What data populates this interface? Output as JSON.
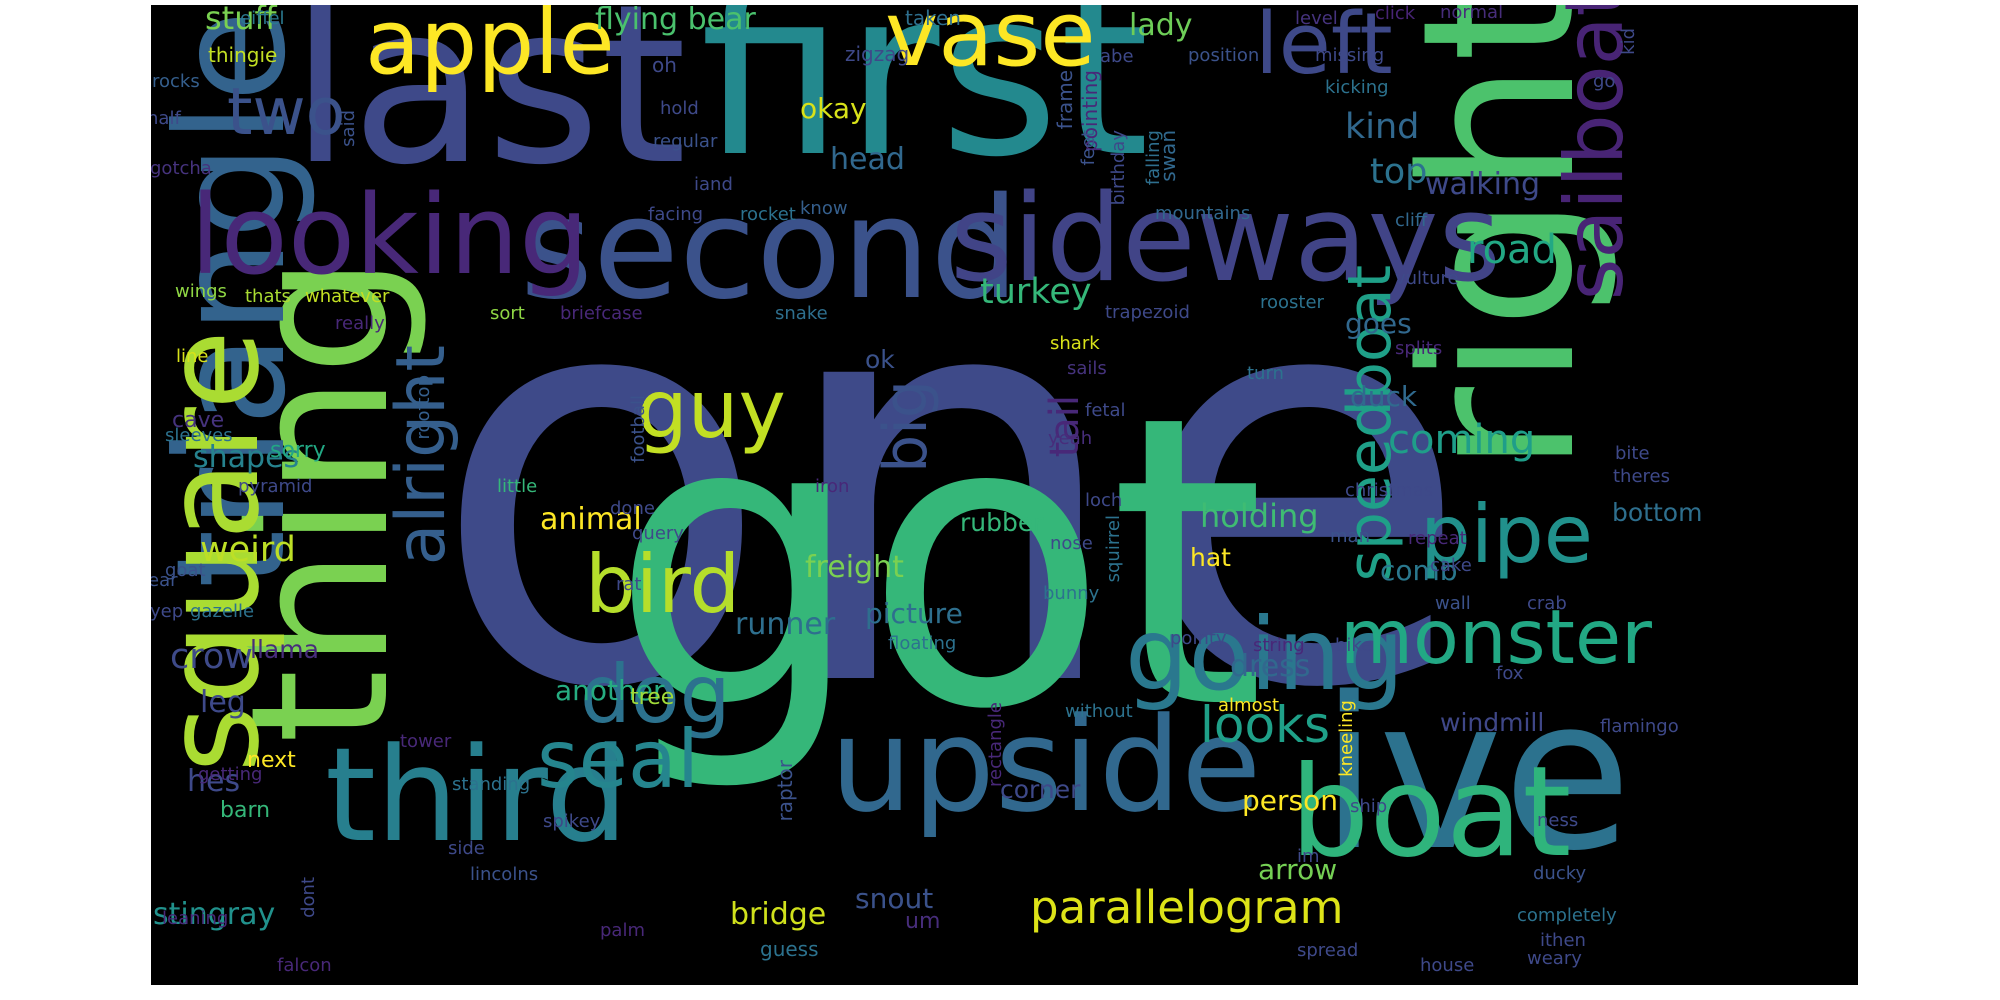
{
  "colors": {
    "background": "#000000",
    "palette": [
      "#44287a",
      "#3b518b",
      "#2c718e",
      "#21918c",
      "#27ad81",
      "#5cc863",
      "#aadc32",
      "#fde725",
      "#46327e",
      "#375b8d"
    ]
  },
  "words": [
    {
      "text": "one",
      "size": "xl",
      "color": "#3e4a89"
    },
    {
      "text": "got",
      "size": "xl",
      "color": "#35b779"
    },
    {
      "text": "first",
      "size": "l",
      "color": "#23898e"
    },
    {
      "text": "last",
      "size": "l",
      "color": "#3e4989"
    },
    {
      "text": "right",
      "size": "l",
      "color": "#4cc26c"
    },
    {
      "text": "ive",
      "size": "l",
      "color": "#2c728e"
    },
    {
      "text": "thing",
      "size": "l",
      "color": "#7ad151"
    },
    {
      "text": "second",
      "size": "l",
      "color": "#3b528b"
    },
    {
      "text": "sideways",
      "size": "l",
      "color": "#414487"
    },
    {
      "text": "upside",
      "size": "l",
      "color": "#31688e"
    },
    {
      "text": "third",
      "size": "l",
      "color": "#277f8e"
    },
    {
      "text": "boat",
      "size": "l",
      "color": "#2fb47c"
    },
    {
      "text": "triangle",
      "size": "l",
      "color": "#33638d"
    },
    {
      "text": "square",
      "size": "l",
      "color": "#aadc32"
    },
    {
      "text": "looking",
      "size": "m",
      "color": "#482878"
    },
    {
      "text": "apple",
      "size": "m",
      "color": "#fde725"
    },
    {
      "text": "vase",
      "size": "m",
      "color": "#fde725"
    },
    {
      "text": "left",
      "size": "m",
      "color": "#3e4989"
    },
    {
      "text": "sailboat",
      "size": "m",
      "color": "#482475"
    },
    {
      "text": "going",
      "size": "m",
      "color": "#2a788e"
    },
    {
      "text": "monster",
      "size": "m",
      "color": "#22a884"
    },
    {
      "text": "pipe",
      "size": "m",
      "color": "#21918c"
    },
    {
      "text": "speedboat",
      "size": "m",
      "color": "#1fa088"
    },
    {
      "text": "bird",
      "size": "m",
      "color": "#b5de2b"
    },
    {
      "text": "guy",
      "size": "m",
      "color": "#c2df23"
    },
    {
      "text": "dog",
      "size": "m",
      "color": "#2c728e"
    },
    {
      "text": "seal",
      "size": "m",
      "color": "#25858e"
    },
    {
      "text": "alright",
      "size": "m",
      "color": "#355f8d"
    },
    {
      "text": "big",
      "size": "m",
      "color": "#3b528b"
    },
    {
      "text": "two",
      "size": "m",
      "color": "#3b528b"
    },
    {
      "text": "looks",
      "size": "s",
      "color": "#1fa088"
    },
    {
      "text": "parallelogram",
      "size": "s",
      "color": "#dde318"
    },
    {
      "text": "road",
      "size": "s",
      "color": "#22a884"
    },
    {
      "text": "coming",
      "size": "s",
      "color": "#1f9e89"
    },
    {
      "text": "kind",
      "size": "s",
      "color": "#31688e"
    },
    {
      "text": "top",
      "size": "s",
      "color": "#2c728e"
    },
    {
      "text": "walking",
      "size": "s",
      "color": "#3e4989"
    },
    {
      "text": "turkey",
      "size": "s",
      "color": "#35b779"
    },
    {
      "text": "head",
      "size": "s",
      "color": "#31688e"
    },
    {
      "text": "stuff",
      "size": "s",
      "color": "#7ad151"
    },
    {
      "text": "flying bear",
      "size": "s",
      "color": "#4ac16d"
    },
    {
      "text": "lady",
      "size": "s",
      "color": "#6ece58"
    },
    {
      "text": "okay",
      "size": "s",
      "color": "#d8e219"
    },
    {
      "text": "holding",
      "size": "s",
      "color": "#3fbc73"
    },
    {
      "text": "goes",
      "size": "s",
      "color": "#31688e"
    },
    {
      "text": "duck",
      "size": "s",
      "color": "#306a8e"
    },
    {
      "text": "weird",
      "size": "s",
      "color": "#bddf26"
    },
    {
      "text": "shapes",
      "size": "s",
      "color": "#26828e"
    },
    {
      "text": "crow",
      "size": "s",
      "color": "#3e4a89"
    },
    {
      "text": "runner",
      "size": "s",
      "color": "#2e6f8e"
    },
    {
      "text": "another",
      "size": "s",
      "color": "#26ad81"
    },
    {
      "text": "animal",
      "size": "s",
      "color": "#fde725"
    },
    {
      "text": "freight",
      "size": "s",
      "color": "#7ad151"
    },
    {
      "text": "tail",
      "size": "s",
      "color": "#482878"
    },
    {
      "text": "hat",
      "size": "s",
      "color": "#fde725"
    },
    {
      "text": "dress",
      "size": "s",
      "color": "#31688e"
    },
    {
      "text": "bridge",
      "size": "s",
      "color": "#d0e11c"
    },
    {
      "text": "snout",
      "size": "s",
      "color": "#3b528b"
    },
    {
      "text": "stingray",
      "size": "s",
      "color": "#21918c"
    },
    {
      "text": "leg",
      "size": "s",
      "color": "#3e4989"
    },
    {
      "text": "hes",
      "size": "s",
      "color": "#3e4989"
    },
    {
      "text": "arrow",
      "size": "s",
      "color": "#75d054"
    },
    {
      "text": "person",
      "size": "s",
      "color": "#fde725"
    },
    {
      "text": "comb",
      "size": "s",
      "color": "#2a788e"
    },
    {
      "text": "bottom",
      "size": "s",
      "color": "#2e6f8e"
    },
    {
      "text": "windmill",
      "size": "s",
      "color": "#3f4788"
    },
    {
      "text": "picture",
      "size": "s",
      "color": "#2e6f8e"
    },
    {
      "text": "rubber",
      "size": "s",
      "color": "#35b779"
    },
    {
      "text": "ok",
      "size": "s",
      "color": "#3b528b"
    },
    {
      "text": "llama",
      "size": "s",
      "color": "#472d7b"
    },
    {
      "text": "corner",
      "size": "s",
      "color": "#3e4989"
    },
    {
      "text": "sorry",
      "size": "xs",
      "color": "#22a884"
    },
    {
      "text": "cave",
      "size": "xs",
      "color": "#46337e"
    },
    {
      "text": "next",
      "size": "xs",
      "color": "#fde725"
    },
    {
      "text": "tree",
      "size": "xs",
      "color": "#a0da39"
    },
    {
      "text": "um",
      "size": "xs",
      "color": "#472d7b"
    },
    {
      "text": "barn",
      "size": "xs",
      "color": "#35b779"
    },
    {
      "text": "guess",
      "size": "xs",
      "color": "#2c728e"
    },
    {
      "text": "thingie",
      "size": "xs",
      "color": "#c2df23"
    },
    {
      "text": "oh",
      "size": "xs",
      "color": "#3e4989"
    },
    {
      "text": "taken",
      "size": "xs",
      "color": "#2e6f8e"
    },
    {
      "text": "zigzag",
      "size": "xs",
      "color": "#3e4989"
    },
    {
      "text": "frame",
      "size": "xs",
      "color": "#3b528b"
    },
    {
      "text": "pointing",
      "size": "xs",
      "color": "#482878"
    },
    {
      "text": "swan",
      "size": "xs",
      "color": "#31688e"
    },
    {
      "text": "level",
      "size": "xs",
      "color": "#46337e"
    },
    {
      "text": "click",
      "size": "xs",
      "color": "#482475"
    },
    {
      "text": "normal",
      "size": "xs",
      "color": "#472d7b"
    },
    {
      "text": "position",
      "size": "xs",
      "color": "#3b528b"
    },
    {
      "text": "missing",
      "size": "xs",
      "color": "#3e4989"
    },
    {
      "text": "kicking",
      "size": "xs",
      "color": "#2c728e"
    },
    {
      "text": "abe",
      "size": "xs",
      "color": "#3e4989"
    },
    {
      "text": "eiffel",
      "size": "xs",
      "color": "#2a788e"
    },
    {
      "text": "rocks",
      "size": "xs",
      "color": "#355f8d"
    },
    {
      "text": "said",
      "size": "xs",
      "color": "#3b528b"
    },
    {
      "text": "half",
      "size": "xs",
      "color": "#3e4989"
    },
    {
      "text": "gotcha",
      "size": "xs",
      "color": "#46337e"
    },
    {
      "text": "hold",
      "size": "xs",
      "color": "#3e4989"
    },
    {
      "text": "regular",
      "size": "xs",
      "color": "#3b528b"
    },
    {
      "text": "iand",
      "size": "xs",
      "color": "#3e4989"
    },
    {
      "text": "facing",
      "size": "xs",
      "color": "#3e4989"
    },
    {
      "text": "rocket",
      "size": "xs",
      "color": "#2c728e"
    },
    {
      "text": "know",
      "size": "xs",
      "color": "#355f8d"
    },
    {
      "text": "feet",
      "size": "xs",
      "color": "#3b528b"
    },
    {
      "text": "birthday",
      "size": "xs",
      "color": "#3e4989"
    },
    {
      "text": "falling",
      "size": "xs",
      "color": "#2e6f8e"
    },
    {
      "text": "mountains",
      "size": "xs",
      "color": "#31688e"
    },
    {
      "text": "cliff",
      "size": "xs",
      "color": "#31688e"
    },
    {
      "text": "vulture",
      "size": "xs",
      "color": "#3e4989"
    },
    {
      "text": "wings",
      "size": "xs",
      "color": "#8fd744"
    },
    {
      "text": "thats",
      "size": "xs",
      "color": "#aadc32"
    },
    {
      "text": "whatever",
      "size": "xs",
      "color": "#c2df23"
    },
    {
      "text": "sort",
      "size": "xs",
      "color": "#8fd744"
    },
    {
      "text": "briefcase",
      "size": "xs",
      "color": "#482878"
    },
    {
      "text": "snake",
      "size": "xs",
      "color": "#2e6f8e"
    },
    {
      "text": "trapezoid",
      "size": "xs",
      "color": "#3e4989"
    },
    {
      "text": "rooster",
      "size": "xs",
      "color": "#2c728e"
    },
    {
      "text": "really",
      "size": "xs",
      "color": "#482878"
    },
    {
      "text": "shark",
      "size": "xs",
      "color": "#d8e219"
    },
    {
      "text": "splits",
      "size": "xs",
      "color": "#482878"
    },
    {
      "text": "line",
      "size": "xs",
      "color": "#d8e219"
    },
    {
      "text": "rooftop",
      "size": "xs",
      "color": "#355f8d"
    },
    {
      "text": "sails",
      "size": "xs",
      "color": "#46337e"
    },
    {
      "text": "turn",
      "size": "xs",
      "color": "#2c728e"
    },
    {
      "text": "sleeves",
      "size": "xs",
      "color": "#2c728e"
    },
    {
      "text": "fetal",
      "size": "xs",
      "color": "#3e4989"
    },
    {
      "text": "yeah",
      "size": "xs",
      "color": "#472d7b"
    },
    {
      "text": "football",
      "size": "xs",
      "color": "#3b528b"
    },
    {
      "text": "pyramid",
      "size": "xs",
      "color": "#3e4989"
    },
    {
      "text": "little",
      "size": "xs",
      "color": "#35b779"
    },
    {
      "text": "iron",
      "size": "xs",
      "color": "#482878"
    },
    {
      "text": "loch",
      "size": "xs",
      "color": "#3e4989"
    },
    {
      "text": "christmas",
      "size": "xs",
      "color": "#3e4989"
    },
    {
      "text": "bite",
      "size": "xs",
      "color": "#3e4989"
    },
    {
      "text": "theres",
      "size": "xs",
      "color": "#3e4989"
    },
    {
      "text": "done",
      "size": "xs",
      "color": "#3e4989"
    },
    {
      "text": "query",
      "size": "xs",
      "color": "#3e4989"
    },
    {
      "text": "squirrel",
      "size": "xs",
      "color": "#2c728e"
    },
    {
      "text": "nose",
      "size": "xs",
      "color": "#3e4989"
    },
    {
      "text": "man",
      "size": "xs",
      "color": "#3b528b"
    },
    {
      "text": "repeat",
      "size": "xs",
      "color": "#482878"
    },
    {
      "text": "cake",
      "size": "xs",
      "color": "#3e4989"
    },
    {
      "text": "ear",
      "size": "xs",
      "color": "#3b528b"
    },
    {
      "text": "goat",
      "size": "xs",
      "color": "#3b528b"
    },
    {
      "text": "rat",
      "size": "xs",
      "color": "#3e4989"
    },
    {
      "text": "bunny",
      "size": "xs",
      "color": "#2c728e"
    },
    {
      "text": "yep",
      "size": "xs",
      "color": "#3e4989"
    },
    {
      "text": "gazelle",
      "size": "xs",
      "color": "#2c728e"
    },
    {
      "text": "floating",
      "size": "xs",
      "color": "#2c728e"
    },
    {
      "text": "pointy",
      "size": "xs",
      "color": "#3e4989"
    },
    {
      "text": "string",
      "size": "xs",
      "color": "#482878"
    },
    {
      "text": "bike",
      "size": "xs",
      "color": "#3e4989"
    },
    {
      "text": "wall",
      "size": "xs",
      "color": "#3b528b"
    },
    {
      "text": "crab",
      "size": "xs",
      "color": "#3e4989"
    },
    {
      "text": "fox",
      "size": "xs",
      "color": "#3e4989"
    },
    {
      "text": "rectangle",
      "size": "xs",
      "color": "#482878"
    },
    {
      "text": "without",
      "size": "xs",
      "color": "#2c728e"
    },
    {
      "text": "almost",
      "size": "xs",
      "color": "#fde725"
    },
    {
      "text": "flamingo",
      "size": "xs",
      "color": "#3e4989"
    },
    {
      "text": "raptor",
      "size": "xs",
      "color": "#3b528b"
    },
    {
      "text": "tower",
      "size": "xs",
      "color": "#482878"
    },
    {
      "text": "getting",
      "size": "xs",
      "color": "#482878"
    },
    {
      "text": "standing",
      "size": "xs",
      "color": "#2c728e"
    },
    {
      "text": "kneeling",
      "size": "xs",
      "color": "#fde725"
    },
    {
      "text": "ship",
      "size": "xs",
      "color": "#3e4989"
    },
    {
      "text": "ness",
      "size": "xs",
      "color": "#3e4989"
    },
    {
      "text": "spikey",
      "size": "xs",
      "color": "#3e4989"
    },
    {
      "text": "side",
      "size": "xs",
      "color": "#3e4989"
    },
    {
      "text": "im",
      "size": "xs",
      "color": "#3e4989"
    },
    {
      "text": "lincolns",
      "size": "xs",
      "color": "#3b528b"
    },
    {
      "text": "ducky",
      "size": "xs",
      "color": "#3b528b"
    },
    {
      "text": "dont",
      "size": "xs",
      "color": "#3e4989"
    },
    {
      "text": "leaning",
      "size": "xs",
      "color": "#482878"
    },
    {
      "text": "completely",
      "size": "xs",
      "color": "#2c728e"
    },
    {
      "text": "ithen",
      "size": "xs",
      "color": "#3e4989"
    },
    {
      "text": "palm",
      "size": "xs",
      "color": "#482878"
    },
    {
      "text": "spread",
      "size": "xs",
      "color": "#3e4989"
    },
    {
      "text": "house",
      "size": "xs",
      "color": "#3e4989"
    },
    {
      "text": "weary",
      "size": "xs",
      "color": "#3e4989"
    },
    {
      "text": "falcon",
      "size": "xs",
      "color": "#482878"
    },
    {
      "text": "go",
      "size": "xs",
      "color": "#3e4989"
    },
    {
      "text": "kid",
      "size": "xs",
      "color": "#3e4989"
    }
  ]
}
